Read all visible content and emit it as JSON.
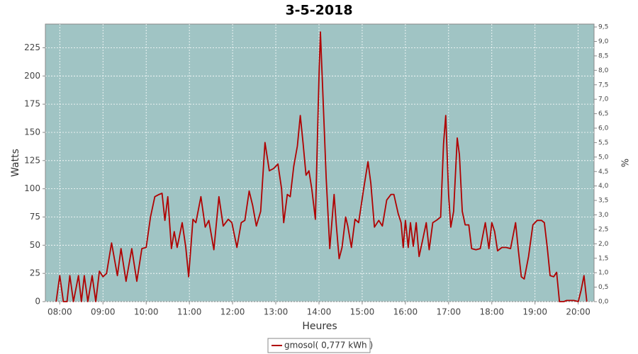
{
  "chart_data": {
    "type": "line",
    "title": "3-5-2018",
    "x_label": "Heures",
    "y_label": "Watts",
    "y2_label": "%",
    "x": [
      "07:55",
      "08:00",
      "08:05",
      "08:10",
      "08:14",
      "08:19",
      "08:26",
      "08:30",
      "08:34",
      "08:39",
      "08:45",
      "08:50",
      "08:55",
      "09:00",
      "09:05",
      "09:12",
      "09:20",
      "09:25",
      "09:32",
      "09:40",
      "09:47",
      "09:54",
      "10:00",
      "10:06",
      "10:12",
      "10:18",
      "10:22",
      "10:26",
      "10:30",
      "10:35",
      "10:39",
      "10:43",
      "10:50",
      "10:55",
      "10:59",
      "11:05",
      "11:09",
      "11:16",
      "11:22",
      "11:27",
      "11:34",
      "11:41",
      "11:47",
      "11:54",
      "11:59",
      "12:06",
      "12:12",
      "12:17",
      "12:23",
      "12:28",
      "12:33",
      "12:39",
      "12:45",
      "12:51",
      "12:57",
      "13:03",
      "13:08",
      "13:11",
      "13:16",
      "13:20",
      "13:25",
      "13:30",
      "13:34",
      "13:38",
      "13:42",
      "13:46",
      "13:50",
      "13:55",
      "14:00",
      "14:02",
      "14:05",
      "14:10",
      "14:15",
      "14:21",
      "14:24",
      "14:28",
      "14:32",
      "14:37",
      "14:40",
      "14:45",
      "14:50",
      "14:55",
      "15:02",
      "15:08",
      "15:12",
      "15:17",
      "15:23",
      "15:28",
      "15:34",
      "15:40",
      "15:44",
      "15:50",
      "15:54",
      "15:57",
      "16:00",
      "16:04",
      "16:07",
      "16:11",
      "16:15",
      "16:19",
      "16:24",
      "16:29",
      "16:33",
      "16:38",
      "16:43",
      "16:49",
      "16:53",
      "16:56",
      "17:00",
      "17:03",
      "17:07",
      "17:12",
      "17:15",
      "17:19",
      "17:23",
      "17:28",
      "17:32",
      "17:38",
      "17:44",
      "17:51",
      "17:56",
      "18:00",
      "18:04",
      "18:08",
      "18:14",
      "18:20",
      "18:26",
      "18:33",
      "18:37",
      "18:41",
      "18:45",
      "18:51",
      "18:57",
      "19:03",
      "19:09",
      "19:13",
      "19:17",
      "19:21",
      "19:26",
      "19:30",
      "19:34",
      "19:40",
      "19:44",
      "19:54",
      "20:00",
      "20:04",
      "20:08",
      "20:12"
    ],
    "series": [
      {
        "name": "gmosol( 0,777 kWh )",
        "color": "#b00000",
        "values": [
          0,
          23,
          0,
          0,
          23,
          0,
          23,
          0,
          23,
          0,
          23,
          0,
          27,
          22,
          25,
          52,
          23,
          47,
          18,
          47,
          18,
          47,
          48,
          75,
          93,
          95,
          96,
          72,
          93,
          47,
          62,
          48,
          70,
          48,
          22,
          73,
          70,
          93,
          66,
          72,
          46,
          93,
          67,
          73,
          70,
          48,
          70,
          72,
          98,
          85,
          67,
          80,
          141,
          116,
          118,
          122,
          100,
          70,
          95,
          93,
          120,
          138,
          165,
          140,
          112,
          116,
          100,
          73,
          200,
          239,
          190,
          110,
          47,
          95,
          68,
          38,
          48,
          75,
          67,
          48,
          73,
          70,
          100,
          124,
          105,
          66,
          72,
          67,
          90,
          95,
          95,
          78,
          70,
          48,
          72,
          48,
          70,
          49,
          70,
          40,
          55,
          70,
          46,
          70,
          72,
          75,
          140,
          165,
          95,
          66,
          80,
          145,
          130,
          80,
          68,
          68,
          47,
          46,
          47,
          70,
          47,
          70,
          62,
          45,
          48,
          48,
          47,
          70,
          45,
          22,
          20,
          40,
          68,
          72,
          72,
          70,
          48,
          23,
          22,
          26,
          0,
          0,
          1,
          1,
          0,
          10,
          23,
          0
        ]
      }
    ],
    "xlim": [
      "07:40",
      "20:22"
    ],
    "xticks": [
      "08:00",
      "09:00",
      "10:00",
      "11:00",
      "12:00",
      "13:00",
      "14:00",
      "15:00",
      "16:00",
      "17:00",
      "18:00",
      "19:00",
      "20:00"
    ],
    "ylim": [
      0,
      246
    ],
    "yticks": [
      0,
      25,
      50,
      75,
      100,
      125,
      150,
      175,
      200,
      225
    ],
    "y2lim": [
      0,
      9.6
    ],
    "y2ticks": [
      {
        "value": 0,
        "label": "0,0"
      },
      {
        "value": 0.5,
        "label": "0,5"
      },
      {
        "value": 1,
        "label": "1,0"
      },
      {
        "value": 1.5,
        "label": "1,5"
      },
      {
        "value": 2,
        "label": "2,0"
      },
      {
        "value": 2.5,
        "label": "2,5"
      },
      {
        "value": 3,
        "label": "3,0"
      },
      {
        "value": 3.5,
        "label": "3,5"
      },
      {
        "value": 4,
        "label": "4,0"
      },
      {
        "value": 4.5,
        "label": "4,5"
      },
      {
        "value": 5,
        "label": "5,0"
      },
      {
        "value": 5.5,
        "label": "5,5"
      },
      {
        "value": 6,
        "label": "6,0"
      },
      {
        "value": 6.5,
        "label": "6,5"
      },
      {
        "value": 7,
        "label": "7,0"
      },
      {
        "value": 7.5,
        "label": "7,5"
      },
      {
        "value": 8,
        "label": "8,0"
      },
      {
        "value": 8.5,
        "label": "8,5"
      },
      {
        "value": 9,
        "label": "9,0"
      },
      {
        "value": 9.5,
        "label": "9,5"
      }
    ],
    "grid": true
  }
}
